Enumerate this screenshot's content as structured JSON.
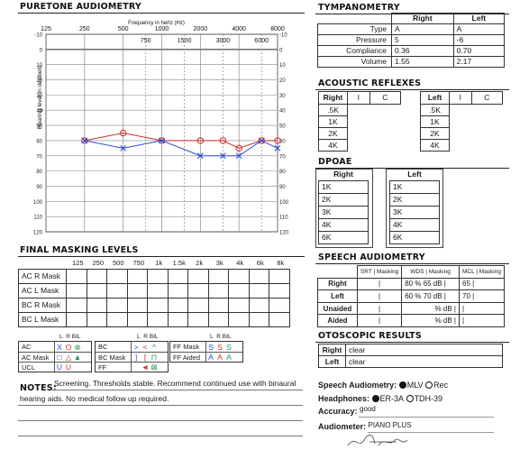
{
  "audiogram": {
    "title": "PURETONE AUDIOMETRY",
    "freq_title": "Frequency in hertz (Hz)",
    "y_label": "Hearing level in decibels",
    "top_labels": [
      "125",
      "250",
      "500",
      "1000",
      "2000",
      "4000",
      "8000"
    ],
    "mid_labels": [
      "750",
      "1500",
      "3000",
      "6000"
    ],
    "db_labels": [
      "-10",
      "0",
      "10",
      "20",
      "30",
      "40",
      "50",
      "60",
      "70",
      "80",
      "90",
      "100",
      "110",
      "120"
    ],
    "right_ear": [
      {
        "freq": 250,
        "db": 60
      },
      {
        "freq": 500,
        "db": 55
      },
      {
        "freq": 1000,
        "db": 60
      },
      {
        "freq": 2000,
        "db": 60
      },
      {
        "freq": 3000,
        "db": 60
      },
      {
        "freq": 4000,
        "db": 65
      },
      {
        "freq": 6000,
        "db": 60
      },
      {
        "freq": 8000,
        "db": 60
      }
    ],
    "left_ear": [
      {
        "freq": 250,
        "db": 60
      },
      {
        "freq": 500,
        "db": 65
      },
      {
        "freq": 1000,
        "db": 60
      },
      {
        "freq": 2000,
        "db": 70
      },
      {
        "freq": 3000,
        "db": 70
      },
      {
        "freq": 4000,
        "db": 70
      },
      {
        "freq": 6000,
        "db": 60
      },
      {
        "freq": 8000,
        "db": 65
      }
    ],
    "right_color": "#d42a2a",
    "left_color": "#2a4fd6"
  },
  "tympanometry": {
    "title": "TYMPANOMETRY",
    "headers": [
      "Right",
      "Left"
    ],
    "rows": [
      {
        "label": "Type",
        "right": "A",
        "left": "A"
      },
      {
        "label": "Pressure",
        "right": "5",
        "left": "-6"
      },
      {
        "label": "Compliance",
        "right": "0.36",
        "left": "0.70"
      },
      {
        "label": "Volume",
        "right": "1.55",
        "left": "2.17"
      }
    ]
  },
  "reflexes": {
    "title": "ACOUSTIC REFLEXES",
    "right_head": "Right",
    "left_head": "Left",
    "i": "I",
    "c": "C",
    "freqs": [
      ".5K",
      "1K",
      "2K",
      "4K"
    ]
  },
  "dpoae": {
    "title": "DPOAE",
    "right_head": "Right",
    "left_head": "Left",
    "freqs": [
      "1K",
      "2K",
      "3K",
      "4K",
      "6K"
    ]
  },
  "masking": {
    "title": "FINAL MASKING LEVELS",
    "freqs": [
      "125",
      "250",
      "500",
      "750",
      "1k",
      "1.5k",
      "2k",
      "3k",
      "4k",
      "6k",
      "8k"
    ],
    "rows": [
      "AC R Mask",
      "AC L Mask",
      "BC R Mask",
      "BC L Mask"
    ]
  },
  "legend": {
    "lrb": [
      "L",
      "R",
      "BIL"
    ],
    "col1": [
      {
        "name": "AC",
        "s": [
          "X",
          "O",
          "⊗"
        ]
      },
      {
        "name": "AC Mask",
        "s": [
          "□",
          "△",
          "▲"
        ]
      },
      {
        "name": "UCL",
        "s": [
          "U",
          "U",
          ""
        ]
      }
    ],
    "col2": [
      {
        "name": "BC",
        "s": [
          ">",
          "<",
          "^"
        ]
      },
      {
        "name": "BC Mask",
        "s": [
          "]",
          "[",
          "⊓"
        ]
      },
      {
        "name": "FF",
        "s": [
          "",
          "◄",
          "⊠"
        ]
      }
    ],
    "col3": [
      {
        "name": "FF Mask",
        "s": [
          "S",
          "S",
          "S"
        ]
      },
      {
        "name": "FF Aided",
        "s": [
          "A",
          "A",
          "A"
        ]
      }
    ]
  },
  "speech": {
    "title": "SPEECH AUDIOMETRY",
    "h_srt": "SRT | Masking",
    "h_wds": "WDS | Masking",
    "h_mcl": "MCL | Masking",
    "rows": [
      {
        "label": "Right",
        "srt": "|",
        "wds": "80 % 65 dB |",
        "mcl": "65 |"
      },
      {
        "label": "Left",
        "srt": "|",
        "wds": "60 % 70 dB |",
        "mcl": "70 |"
      },
      {
        "label": "Unaided",
        "srt": "|",
        "wds": "% dB |",
        "mcl": "|"
      },
      {
        "label": "Aided",
        "srt": "|",
        "wds": "% dB |",
        "mcl": "|"
      }
    ]
  },
  "otoscopic": {
    "title": "OTOSCOPIC RESULTS",
    "rows": [
      {
        "label": "Right",
        "value": "clear"
      },
      {
        "label": "Left",
        "value": "clear"
      }
    ]
  },
  "notes": {
    "title": "NOTES:",
    "line1": "Screening. Thresholds stable. Recommend continued use with binaural",
    "line2": "hearing aids. No medical follow up required."
  },
  "info": {
    "speech_label": "Speech Audiometry:",
    "speech_opt1": "MLV",
    "speech_opt2": "Rec",
    "head_label": "Headphones:",
    "head_opt1": "ER-3A",
    "head_opt2": "TDH-39",
    "acc_label": "Accuracy:",
    "acc_value": "good",
    "aud_label": "Audiometer:",
    "aud_value": "PIANO PLUS"
  }
}
